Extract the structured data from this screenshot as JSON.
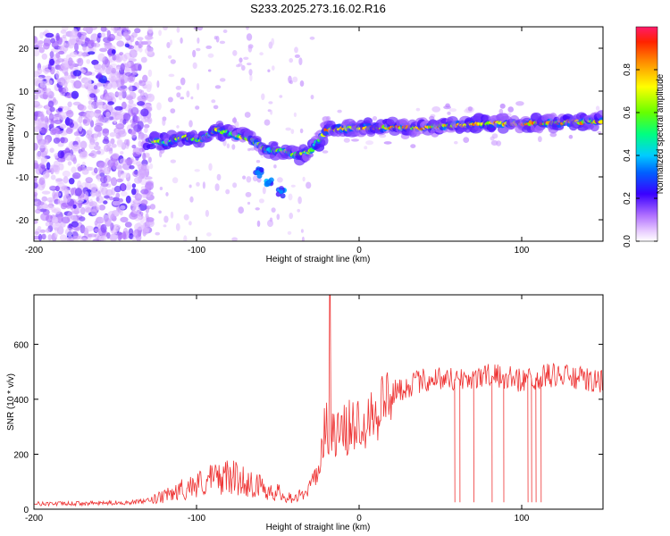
{
  "title": "S233.2025.273.16.02.R16",
  "chart_data": [
    {
      "type": "heatmap",
      "xlabel": "Height of straight line (km)",
      "ylabel": "Frequency (Hz)",
      "xlim": [
        -200,
        150
      ],
      "ylim": [
        -25,
        25
      ],
      "xticks": [
        -200,
        -100,
        0,
        100
      ],
      "yticks": [
        -20,
        -10,
        0,
        10,
        20
      ],
      "colorbar": {
        "label": "Normalized spectral amplitude",
        "range": [
          0,
          1
        ],
        "ticks": [
          0.0,
          0.2,
          0.4,
          0.6,
          0.8
        ],
        "tick_labels": [
          "0.0",
          "0.2",
          "0.4",
          "0.6",
          "0.8"
        ]
      },
      "ridge": [
        {
          "x": -128,
          "y": -1.5
        },
        {
          "x": -118,
          "y": -2
        },
        {
          "x": -108,
          "y": -0.5
        },
        {
          "x": -98,
          "y": -1.5
        },
        {
          "x": -88,
          "y": 1
        },
        {
          "x": -78,
          "y": 0
        },
        {
          "x": -68,
          "y": -1
        },
        {
          "x": -58,
          "y": -3.5
        },
        {
          "x": -48,
          "y": -4
        },
        {
          "x": -38,
          "y": -5
        },
        {
          "x": -30,
          "y": -4
        },
        {
          "x": -20,
          "y": 1
        },
        {
          "x": 0,
          "y": 1.5
        },
        {
          "x": 40,
          "y": 1.5
        },
        {
          "x": 80,
          "y": 2.5
        },
        {
          "x": 110,
          "y": 2.5
        },
        {
          "x": 150,
          "y": 3
        }
      ],
      "branch": [
        {
          "x": -62,
          "y": -9
        },
        {
          "x": -55,
          "y": -11
        },
        {
          "x": -48,
          "y": -13.5
        }
      ]
    },
    {
      "type": "line",
      "xlabel": "Height of straight line (km)",
      "ylabel": "SNR (10 * v/v)",
      "xlim": [
        -200,
        150
      ],
      "ylim": [
        0,
        780
      ],
      "xticks": [
        -200,
        -100,
        0,
        100
      ],
      "yticks": [
        0,
        200,
        400,
        600
      ],
      "series": [
        {
          "name": "SNR",
          "color": "#ee3333",
          "x": [
            -200,
            -180,
            -160,
            -140,
            -130,
            -120,
            -110,
            -100,
            -90,
            -80,
            -70,
            -60,
            -50,
            -40,
            -35,
            -30,
            -25,
            -22,
            -20,
            -18,
            -15,
            -10,
            -5,
            0,
            10,
            20,
            30,
            40,
            50,
            60,
            70,
            80,
            90,
            100,
            110,
            120,
            130,
            140,
            150
          ],
          "values": [
            20,
            20,
            22,
            25,
            30,
            45,
            70,
            90,
            110,
            120,
            100,
            80,
            60,
            40,
            50,
            80,
            150,
            250,
            320,
            300,
            260,
            280,
            300,
            320,
            360,
            420,
            450,
            470,
            480,
            470,
            480,
            485,
            480,
            470,
            480,
            490,
            480,
            470,
            460
          ],
          "spike": {
            "x": -18,
            "value": 780
          },
          "dropouts": {
            "start": 45,
            "end": 115,
            "value": 25
          }
        }
      ]
    }
  ]
}
